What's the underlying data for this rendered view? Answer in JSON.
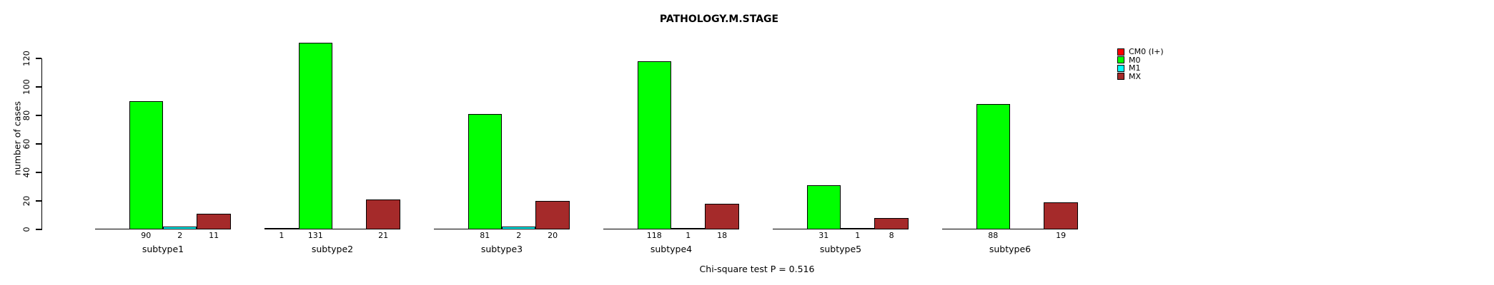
{
  "chart_data": {
    "type": "bar",
    "title": "PATHOLOGY.M.STAGE",
    "ylabel": "number of cases",
    "annotation": "Chi-square test P = 0.516",
    "categories": [
      "subtype1",
      "subtype2",
      "subtype3",
      "subtype4",
      "subtype5",
      "subtype6"
    ],
    "series": [
      {
        "name": "CM0 (I+)",
        "color": "#FF0000",
        "values": [
          0,
          1,
          0,
          0,
          0,
          0
        ]
      },
      {
        "name": "M0",
        "color": "#00FF00",
        "values": [
          90,
          131,
          81,
          118,
          31,
          88
        ]
      },
      {
        "name": "M1",
        "color": "#00FFFF",
        "values": [
          2,
          0,
          2,
          1,
          1,
          0
        ]
      },
      {
        "name": "MX",
        "color": "#A52A2A",
        "values": [
          11,
          21,
          20,
          18,
          8,
          19
        ]
      }
    ],
    "yticks": [
      0,
      20,
      40,
      60,
      80,
      100,
      120
    ],
    "ylim": [
      0,
      135
    ],
    "grid": false,
    "legend_position": "top-right",
    "value_labels": "shown under each bar when value > 0"
  }
}
